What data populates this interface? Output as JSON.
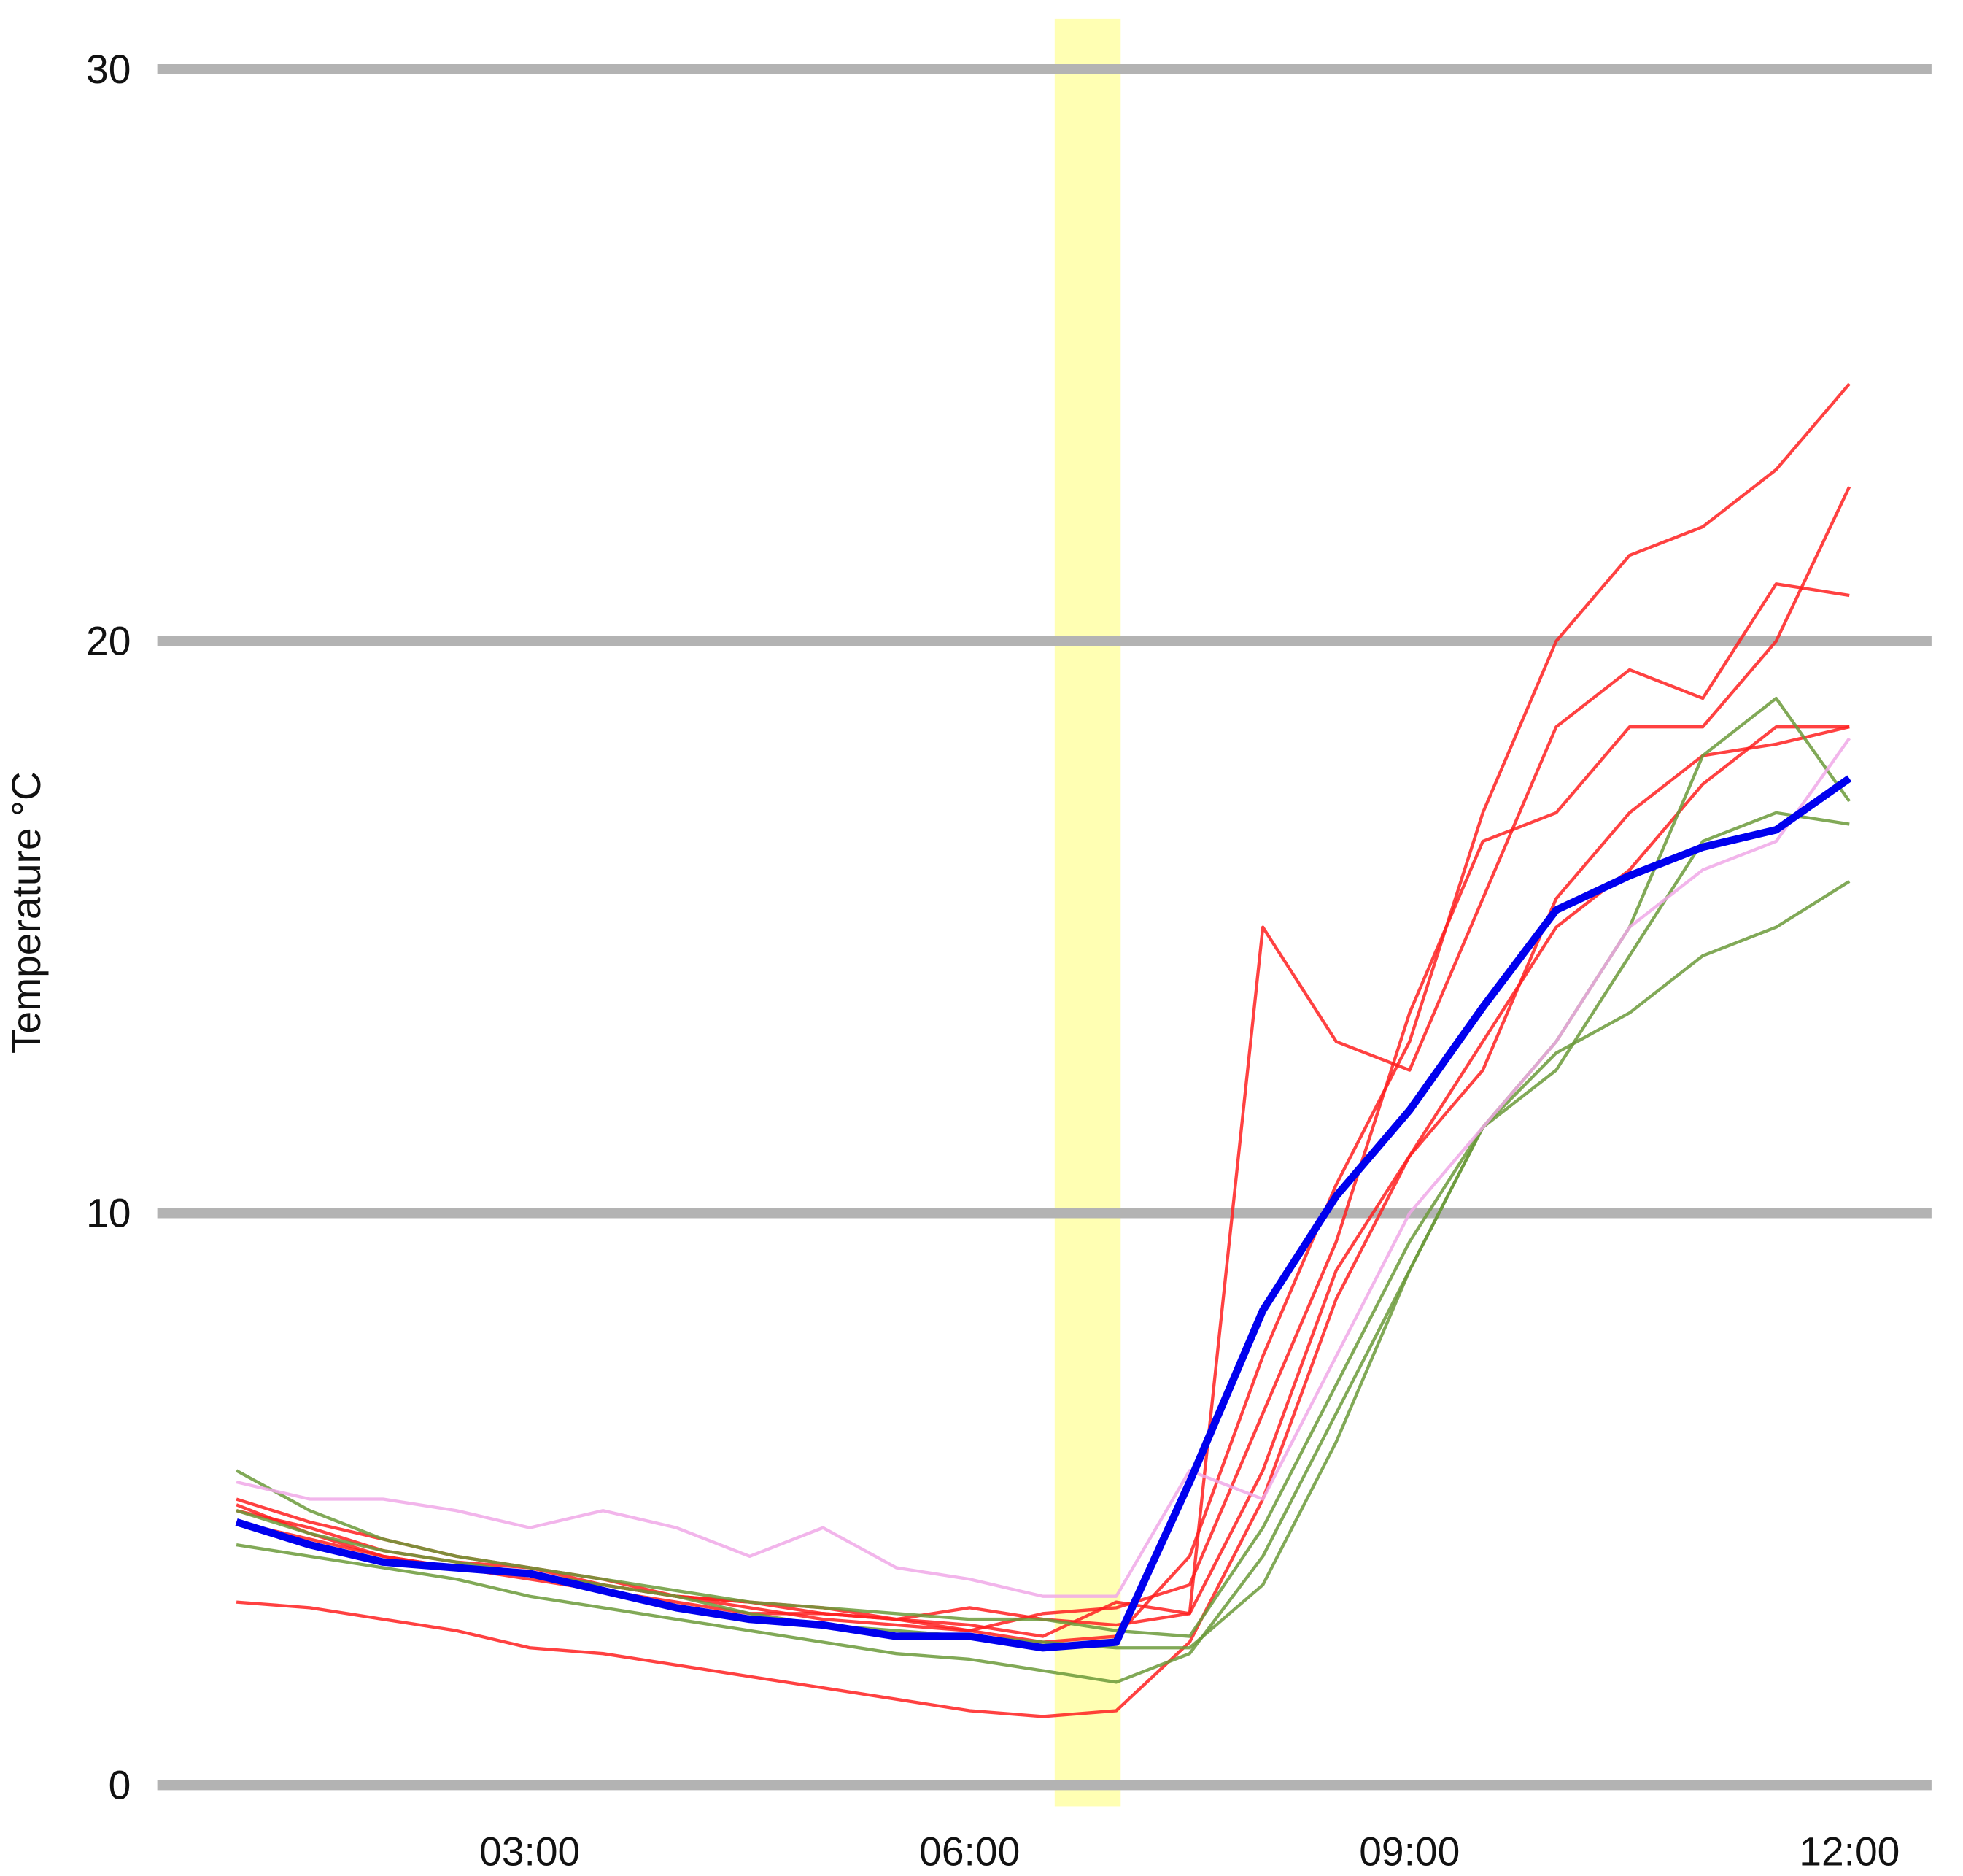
{
  "chart_data": {
    "type": "line",
    "y_label": "Temperature °C",
    "xlim": [
      0.46,
      12.56
    ],
    "ylim": [
      -0.37,
      30.88
    ],
    "xticks": [
      {
        "value": 3,
        "label": "03:00"
      },
      {
        "value": 6,
        "label": "06:00"
      },
      {
        "value": 9,
        "label": "09:00"
      },
      {
        "value": 12,
        "label": "12:00"
      }
    ],
    "yticks": [
      0,
      10,
      20,
      30
    ],
    "grid": true,
    "highlight": {
      "x": [
        6.58,
        7.03
      ],
      "color": "#ffff99"
    },
    "x": [
      1,
      1.5,
      2,
      2.5,
      3,
      3.5,
      4,
      4.5,
      5,
      5.5,
      6,
      6.5,
      7,
      7.5,
      8,
      8.5,
      9,
      9.5,
      10,
      10.5,
      11,
      11.5,
      12
    ],
    "series": [
      {
        "color": "#ff2020",
        "values": [
          4.9,
          4.4,
          4.0,
          3.8,
          3.6,
          3.4,
          3.2,
          3.0,
          3.0,
          2.9,
          2.8,
          2.6,
          3.2,
          3.0,
          15.0,
          13.0,
          12.5,
          15.5,
          18.5,
          19.5,
          19.0,
          21.0,
          20.8
        ]
      },
      {
        "color": "#ff2020",
        "values": [
          5.0,
          4.6,
          4.3,
          4.0,
          3.8,
          3.6,
          3.3,
          3.2,
          3.0,
          2.9,
          2.7,
          2.5,
          2.6,
          4.0,
          7.5,
          10.5,
          13.0,
          17.0,
          20.0,
          21.5,
          22.0,
          23.0,
          24.5
        ]
      },
      {
        "color": "#ff2020",
        "values": [
          4.8,
          4.5,
          4.1,
          3.9,
          3.8,
          3.5,
          3.3,
          3.1,
          2.9,
          2.8,
          2.7,
          3.0,
          3.1,
          3.5,
          6.5,
          9.5,
          13.5,
          16.5,
          17.0,
          18.5,
          18.5,
          20.0,
          22.7
        ]
      },
      {
        "color": "#ff2020",
        "values": [
          4.6,
          4.3,
          4.0,
          3.8,
          3.7,
          3.5,
          3.3,
          3.2,
          3.1,
          2.9,
          3.1,
          2.9,
          2.8,
          3.0,
          5.5,
          9.0,
          11.0,
          13.0,
          15.0,
          16.0,
          17.5,
          18.5,
          18.5
        ]
      },
      {
        "color": "#ff2020",
        "values": [
          3.2,
          3.1,
          2.9,
          2.7,
          2.4,
          2.3,
          2.1,
          1.9,
          1.7,
          1.5,
          1.3,
          1.2,
          1.3,
          2.5,
          5.0,
          8.5,
          11.0,
          12.5,
          15.5,
          17.0,
          18.0,
          18.2,
          18.5
        ]
      },
      {
        "color": "#6b9a3a",
        "values": [
          5.5,
          4.8,
          4.3,
          4.0,
          3.8,
          3.6,
          3.4,
          3.2,
          3.1,
          3.0,
          2.9,
          2.9,
          2.7,
          2.6,
          4.5,
          7.0,
          9.5,
          11.5,
          13.0,
          15.0,
          18.0,
          19.0,
          17.2
        ]
      },
      {
        "color": "#6b9a3a",
        "values": [
          4.2,
          4.0,
          3.8,
          3.6,
          3.3,
          3.1,
          2.9,
          2.7,
          2.5,
          2.3,
          2.2,
          2.0,
          1.8,
          2.3,
          4.0,
          6.5,
          9.0,
          11.5,
          12.5,
          14.5,
          16.5,
          17.0,
          16.8
        ]
      },
      {
        "color": "#6b9a3a",
        "values": [
          4.8,
          4.4,
          4.1,
          3.9,
          3.7,
          3.5,
          3.3,
          3.0,
          2.8,
          2.7,
          2.6,
          2.5,
          2.4,
          2.4,
          3.5,
          6.0,
          9.0,
          11.5,
          12.8,
          13.5,
          14.5,
          15.0,
          15.8
        ]
      },
      {
        "color": "#f0a8e8",
        "values": [
          5.3,
          5.0,
          5.0,
          4.8,
          4.5,
          4.8,
          4.5,
          4.0,
          4.5,
          3.8,
          3.6,
          3.3,
          3.3,
          5.5,
          5.0,
          7.5,
          10.0,
          11.5,
          13.0,
          15.0,
          16.0,
          16.5,
          18.3
        ]
      },
      {
        "color": "#0000ee",
        "values": [
          4.6,
          4.2,
          3.9,
          3.8,
          3.7,
          3.4,
          3.1,
          2.9,
          2.8,
          2.6,
          2.6,
          2.4,
          2.5,
          5.3,
          8.3,
          10.3,
          11.8,
          13.6,
          15.3,
          15.9,
          16.4,
          16.7,
          17.6
        ]
      }
    ]
  }
}
